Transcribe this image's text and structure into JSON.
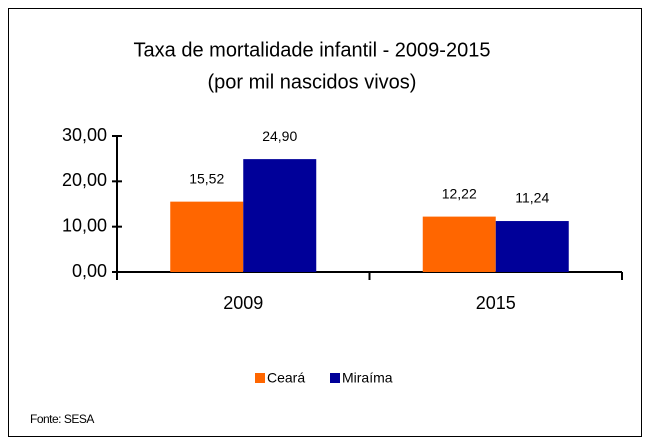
{
  "chart_data": {
    "type": "bar",
    "title": "Taxa de mortalidade infantil - 2009-2015",
    "subtitle": "(por mil nascidos vivos)",
    "categories": [
      "2009",
      "2015"
    ],
    "series": [
      {
        "name": "Ceará",
        "color": "#ff6600",
        "values": [
          15.52,
          12.22
        ],
        "value_labels": [
          "15,52",
          "12,22"
        ]
      },
      {
        "name": "Miraíma",
        "color": "#000099",
        "values": [
          24.9,
          11.24
        ],
        "value_labels": [
          "24,90",
          "11,24"
        ]
      }
    ],
    "ylim": [
      0,
      30
    ],
    "yticks": [
      {
        "value": 0,
        "label": "0,00"
      },
      {
        "value": 10,
        "label": "10,00"
      },
      {
        "value": 20,
        "label": "20,00"
      },
      {
        "value": 30,
        "label": "30,00"
      }
    ],
    "legend": "bottom",
    "source": "Fonte: SESA"
  }
}
